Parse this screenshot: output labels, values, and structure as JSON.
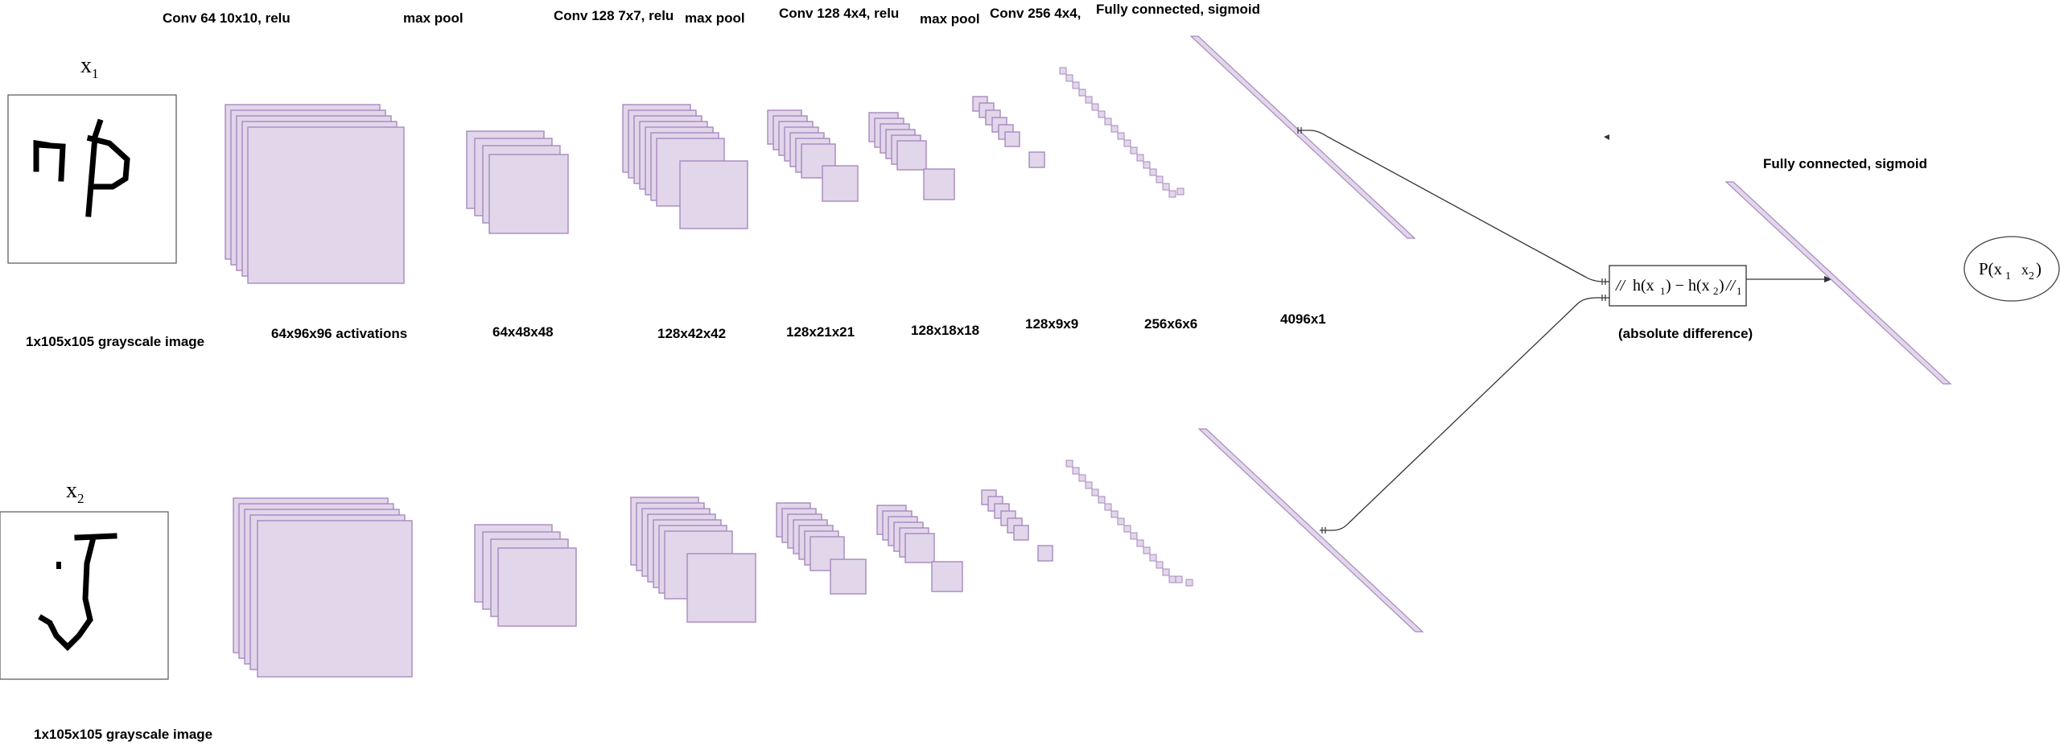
{
  "top_labels": {
    "conv1": "Conv 64 10x10, relu",
    "pool1": "max pool",
    "conv2": "Conv 128 7x7, relu",
    "pool2": "max pool",
    "conv3": "Conv 128 4x4, relu",
    "pool3": "max pool",
    "conv4": "Conv 256 4x4,",
    "fc1": "Fully connected, sigmoid"
  },
  "input_top": {
    "var": "x",
    "sub": "1",
    "caption": "1x105x105 grayscale image"
  },
  "input_bottom": {
    "var": "x",
    "sub": "2",
    "caption": "1x105x105 grayscale image"
  },
  "dims": {
    "act1": "64x96x96 activations",
    "pool1": "64x48x48",
    "act2": "128x42x42",
    "act3": "128x21x21",
    "act4": "128x18x18",
    "act5": "128x9x9",
    "act6": "256x6x6",
    "fc": "4096x1"
  },
  "distance": {
    "label": "(absolute difference)",
    "norm": "//",
    "h": "h(x",
    "sub1": "1",
    "mid": ") − h(x",
    "sub2": "2",
    "close": ")",
    "norm_close": "//",
    "norm_sub": "1"
  },
  "final_fc_label": "Fully connected, sigmoid",
  "output": {
    "p": "P(x",
    "sub1": "1",
    "sep": "x",
    "sub2": "2",
    "close": ")"
  },
  "colors": {
    "layer_fill": "#e2d6ea",
    "layer_stroke": "#a789bf",
    "ink": "#000000"
  }
}
